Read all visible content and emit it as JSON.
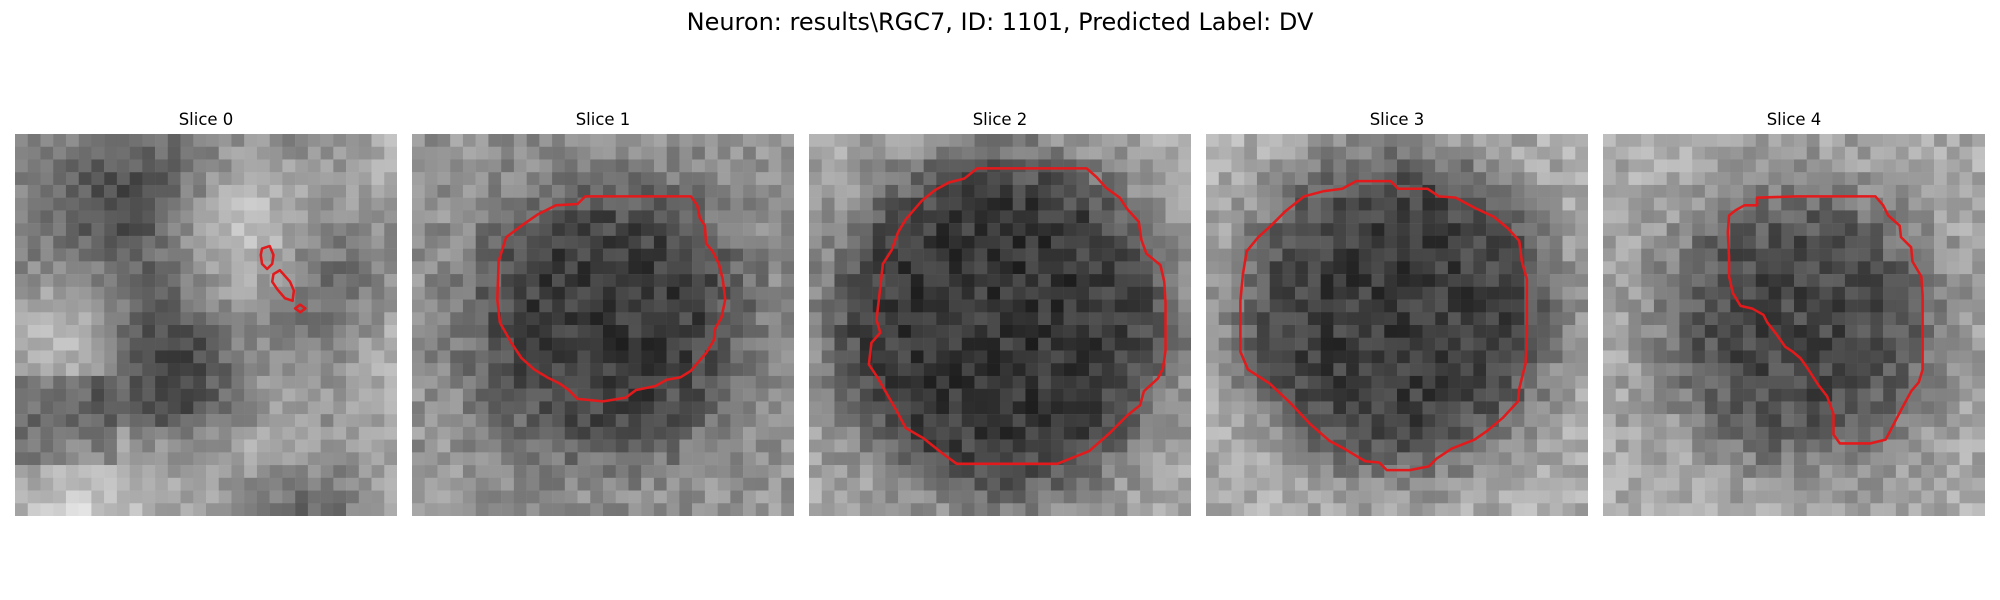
{
  "figure": {
    "title": "Neuron: results\\RGC7, ID: 1101, Predicted Label: DV"
  },
  "contour_color": "#e31a1c",
  "panels": [
    {
      "title": "Slice 0"
    },
    {
      "title": "Slice 1"
    },
    {
      "title": "Slice 2"
    },
    {
      "title": "Slice 3"
    },
    {
      "title": "Slice 4"
    }
  ]
}
